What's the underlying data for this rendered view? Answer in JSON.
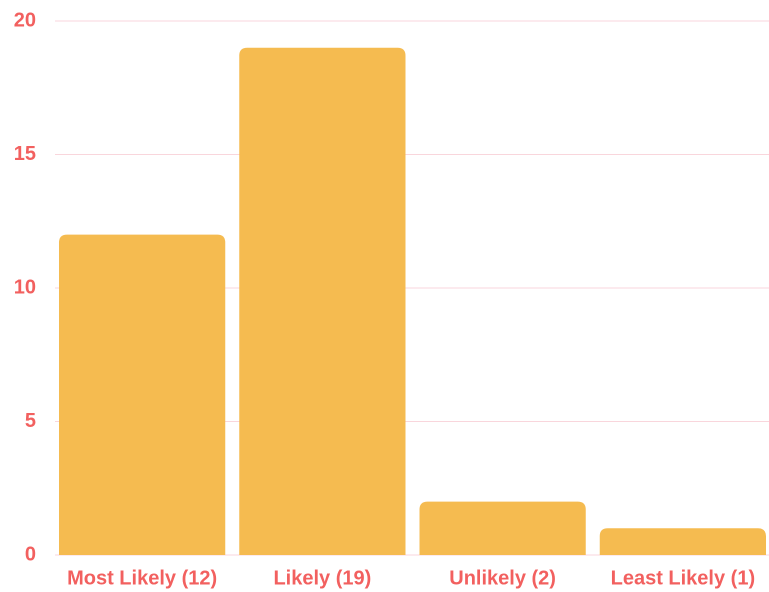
{
  "chart_data": {
    "type": "bar",
    "categories": [
      "Most Likely (12)",
      "Likely (19)",
      "Unlikely (2)",
      "Least Likely (1)"
    ],
    "values": [
      12,
      19,
      2,
      1
    ],
    "color": "#f5bb50",
    "ylim": [
      0,
      20
    ],
    "yticks": [
      0,
      5,
      10,
      15,
      20
    ],
    "grid": true
  }
}
